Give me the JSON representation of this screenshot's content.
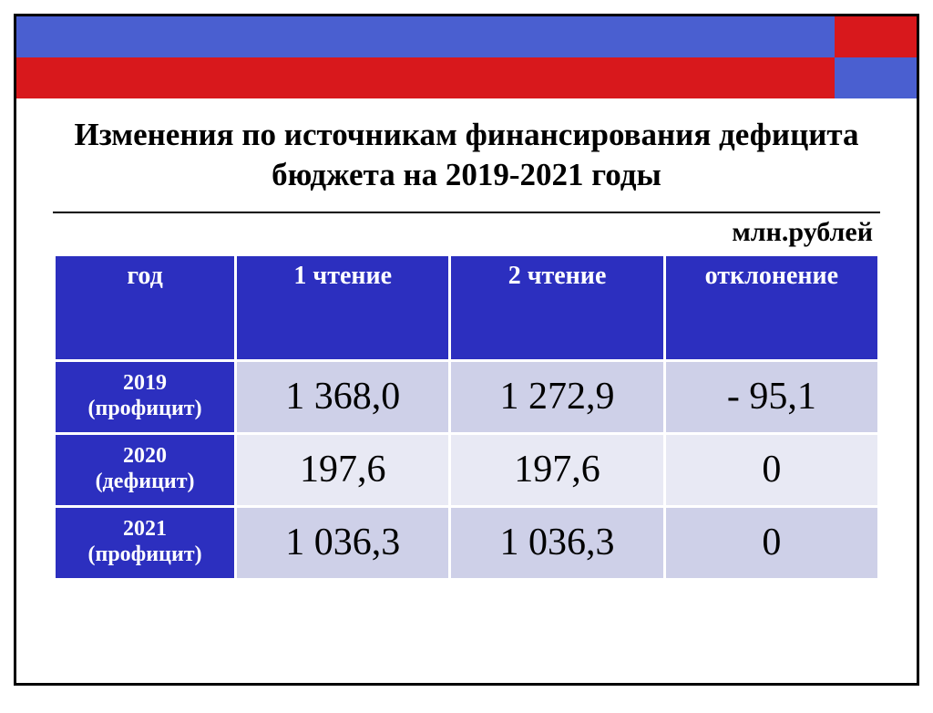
{
  "colors": {
    "frame_border": "#000000",
    "blue_strip": "#4a5fd0",
    "red_strip": "#d8181c",
    "header_bg": "#2c2fbf",
    "header_fg": "#ffffff",
    "row_alt_a": "#ced0e8",
    "row_alt_b": "#e8e9f4",
    "text": "#000000"
  },
  "title": "Изменения по источникам финансирования дефицита бюджета на 2019-2021 годы",
  "units": "млн.рублей",
  "table": {
    "type": "table",
    "col_widths_pct": [
      22,
      26,
      26,
      26
    ],
    "columns": [
      "год",
      "1 чтение",
      "2 чтение",
      "отклонение"
    ],
    "header_fontsize_pt": 28,
    "year_fontsize_pt": 24,
    "value_fontsize_pt": 42,
    "rows": [
      {
        "year_line1": "2019",
        "year_line2": "(профицит)",
        "v1": "1 368,0",
        "v2": "1 272,9",
        "d": "- 95,1"
      },
      {
        "year_line1": "2020",
        "year_line2": "(дефицит)",
        "v1": "197,6",
        "v2": "197,6",
        "d": "0"
      },
      {
        "year_line1": "2021",
        "year_line2": "(профицит)",
        "v1": "1 036,3",
        "v2": "1 036,3",
        "d": "0"
      }
    ]
  }
}
